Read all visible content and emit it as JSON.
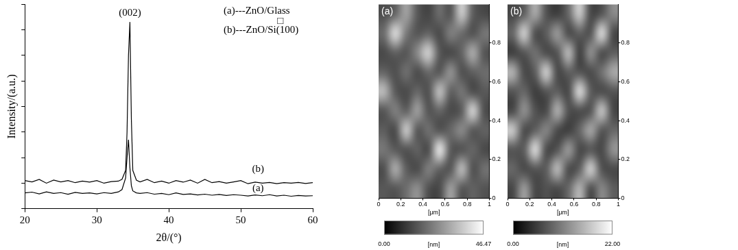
{
  "chart_data": [
    {
      "type": "line",
      "x_label": "2θ/(°)",
      "y_label": "Intensity/(a.u.)",
      "x": [
        20,
        21,
        22,
        23,
        24,
        25,
        26,
        27,
        28,
        29,
        30,
        31,
        32,
        33,
        33.5,
        34,
        34.2,
        34.4,
        34.6,
        34.8,
        35,
        35.5,
        36,
        37,
        38,
        39,
        40,
        41,
        42,
        43,
        44,
        45,
        46,
        47,
        48,
        49,
        50,
        51,
        52,
        53,
        54,
        55,
        56,
        57,
        58,
        59,
        60
      ],
      "series": [
        {
          "name": "(a)---ZnO/Glass",
          "color": "#000000",
          "values": [
            0.62,
            0.65,
            0.58,
            0.66,
            0.6,
            0.63,
            0.57,
            0.64,
            0.6,
            0.62,
            0.58,
            0.63,
            0.6,
            0.66,
            0.75,
            1.2,
            2.0,
            2.7,
            1.6,
            0.9,
            0.7,
            0.62,
            0.6,
            0.63,
            0.57,
            0.6,
            0.55,
            0.62,
            0.56,
            0.58,
            0.54,
            0.57,
            0.53,
            0.56,
            0.52,
            0.55,
            0.53,
            0.5,
            0.54,
            0.51,
            0.55,
            0.5,
            0.53,
            0.49,
            0.52,
            0.5,
            0.51
          ]
        },
        {
          "name": "(b)---ZnO/Si(100)",
          "color": "#000000",
          "values": [
            1.1,
            1.05,
            1.15,
            1.0,
            1.12,
            1.05,
            1.1,
            1.02,
            1.08,
            1.04,
            1.1,
            1.0,
            1.06,
            1.08,
            1.15,
            1.5,
            3.0,
            6.0,
            7.3,
            3.5,
            1.5,
            1.12,
            1.05,
            1.15,
            1.02,
            1.08,
            1.0,
            1.1,
            1.04,
            1.12,
            1.0,
            1.15,
            1.02,
            1.06,
            1.0,
            1.05,
            1.1,
            0.98,
            1.04,
            1.0,
            1.03,
            0.98,
            1.02,
            1.0,
            1.03,
            0.99,
            1.02
          ]
        }
      ],
      "xlim": [
        20,
        60
      ],
      "xticks": [
        20,
        30,
        40,
        50,
        60
      ],
      "ylim": [
        0,
        8
      ],
      "yticks": [
        0,
        1,
        2,
        3,
        4,
        5,
        6,
        7,
        8
      ],
      "tick_labels": "x",
      "grid": false,
      "legend": "top right",
      "annotations": [
        {
          "text": "(002)",
          "x": 34.6,
          "y": 7.65
        },
        {
          "text": "(b)",
          "x": 52.4,
          "y": 1.55
        },
        {
          "text": "(a)",
          "x": 52.4,
          "y": 0.8
        },
        {
          "text": "□",
          "x": 55.5,
          "y": 7.33
        }
      ]
    },
    {
      "type": "heatmap",
      "label": "(a)",
      "x_label": "[μm]",
      "xlim": [
        0,
        1
      ],
      "xticks": [
        0,
        0.2,
        0.4,
        0.6,
        0.8,
        1
      ],
      "ylim": [
        0,
        1
      ],
      "yticks": [
        0,
        0.2,
        0.4,
        0.6,
        0.8
      ],
      "x": [
        0.05,
        0.15,
        0.25,
        0.35,
        0.45,
        0.55,
        0.65,
        0.75,
        0.85,
        0.95
      ],
      "y": [
        0.95,
        0.85,
        0.75,
        0.65,
        0.55,
        0.45,
        0.35,
        0.25,
        0.15,
        0.05
      ],
      "z": [
        [
          14,
          18,
          30,
          16,
          12,
          20,
          15,
          38,
          17,
          13
        ],
        [
          20,
          42,
          22,
          15,
          18,
          13,
          24,
          19,
          14,
          22
        ],
        [
          13,
          17,
          15,
          26,
          40,
          16,
          12,
          18,
          33,
          15
        ],
        [
          18,
          14,
          21,
          13,
          19,
          15,
          28,
          14,
          17,
          20
        ],
        [
          35,
          16,
          13,
          19,
          14,
          37,
          17,
          22,
          13,
          16
        ],
        [
          15,
          24,
          17,
          30,
          15,
          18,
          13,
          16,
          41,
          14
        ],
        [
          17,
          13,
          39,
          15,
          21,
          14,
          19,
          26,
          15,
          18
        ],
        [
          22,
          16,
          14,
          18,
          13,
          45,
          16,
          14,
          19,
          13
        ],
        [
          14,
          33,
          17,
          13,
          24,
          17,
          15,
          36,
          14,
          21
        ],
        [
          16,
          15,
          20,
          27,
          14,
          13,
          30,
          15,
          18,
          15
        ]
      ],
      "colorbar": {
        "range": [
          0,
          46.47
        ],
        "ticks": [
          {
            "value": 0,
            "label": "0.00"
          },
          {
            "value": 46.47,
            "label": "46.47"
          }
        ],
        "label": "[nm]"
      }
    },
    {
      "type": "heatmap",
      "label": "(b)",
      "x_label": "[μm]",
      "xlim": [
        0,
        1
      ],
      "xticks": [
        0,
        0.2,
        0.4,
        0.6,
        0.8,
        1
      ],
      "ylim": [
        0,
        1
      ],
      "yticks": [
        0,
        0.2,
        0.4,
        0.6,
        0.8
      ],
      "x": [
        0.05,
        0.15,
        0.25,
        0.35,
        0.45,
        0.55,
        0.65,
        0.75,
        0.85,
        0.95
      ],
      "y": [
        0.95,
        0.85,
        0.75,
        0.65,
        0.55,
        0.45,
        0.35,
        0.25,
        0.15,
        0.05
      ],
      "z": [
        [
          6,
          8,
          15,
          7,
          5,
          9,
          18,
          6,
          7,
          12
        ],
        [
          9,
          19,
          6,
          8,
          14,
          6,
          8,
          7,
          20,
          6
        ],
        [
          5,
          7,
          10,
          6,
          7,
          17,
          5,
          13,
          6,
          8
        ],
        [
          16,
          6,
          8,
          19,
          6,
          8,
          7,
          6,
          10,
          15
        ],
        [
          7,
          9,
          5,
          7,
          8,
          6,
          20,
          8,
          6,
          7
        ],
        [
          6,
          13,
          7,
          6,
          16,
          7,
          6,
          7,
          18,
          6
        ],
        [
          18,
          6,
          8,
          12,
          6,
          5,
          9,
          15,
          7,
          9
        ],
        [
          7,
          8,
          20,
          6,
          7,
          14,
          6,
          7,
          6,
          13
        ],
        [
          9,
          6,
          7,
          8,
          17,
          6,
          8,
          19,
          7,
          6
        ],
        [
          6,
          14,
          6,
          7,
          6,
          9,
          16,
          6,
          12,
          8
        ]
      ],
      "colorbar": {
        "range": [
          0,
          22
        ],
        "ticks": [
          {
            "value": 0,
            "label": "0.00"
          },
          {
            "value": 22,
            "label": "22.00"
          }
        ],
        "label": "[nm]"
      }
    }
  ]
}
